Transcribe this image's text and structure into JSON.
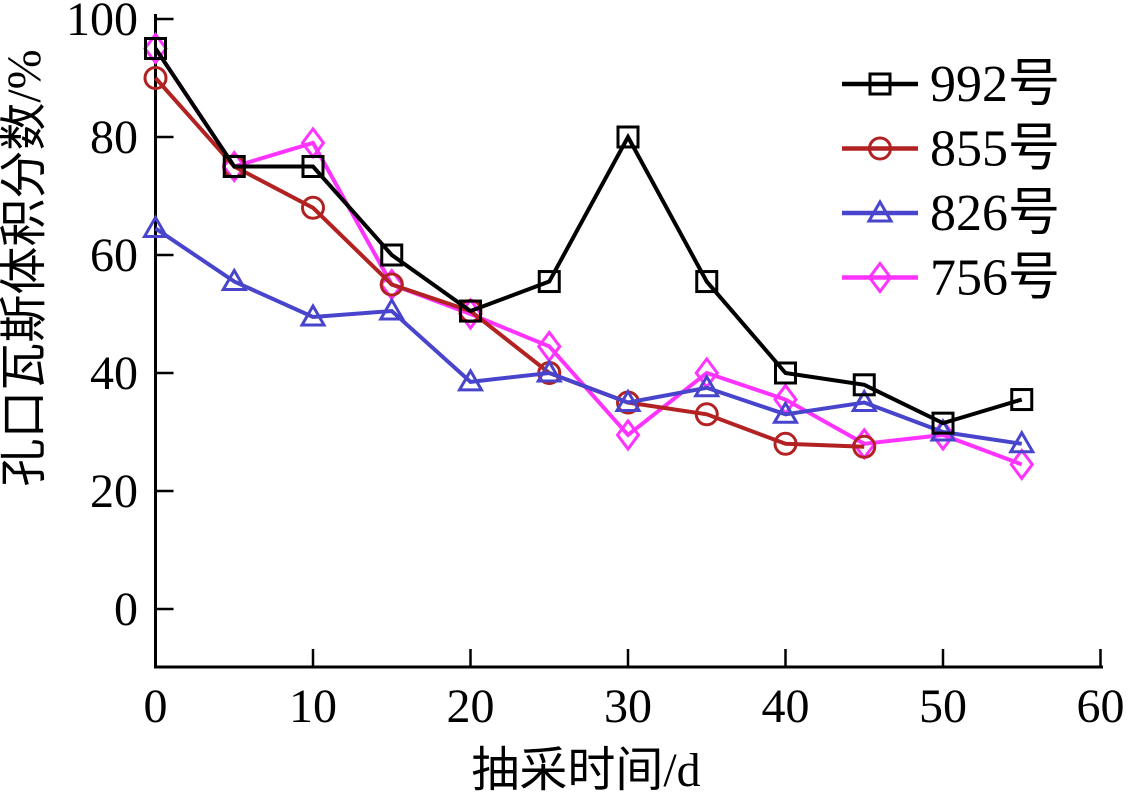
{
  "figure": {
    "background": "#ffffff"
  },
  "chart_data": {
    "type": "line",
    "title": "",
    "xlabel": "抽采时间/d",
    "ylabel": "孔口瓦斯体积分数/%",
    "xlim": [
      0,
      60
    ],
    "ylim": [
      0,
      100
    ],
    "xticks": [
      0,
      10,
      20,
      30,
      40,
      50,
      60
    ],
    "yticks": [
      0,
      20,
      40,
      60,
      80,
      100
    ],
    "grid": false,
    "legend_position": "upper-right",
    "x": [
      0,
      5,
      10,
      15,
      20,
      25,
      30,
      35,
      40,
      45,
      50,
      55
    ],
    "series": [
      {
        "name": "992号",
        "color": "#000000",
        "marker": "square",
        "values": [
          95,
          75,
          75,
          60,
          50.5,
          55.5,
          80,
          55.5,
          40,
          38,
          31.5,
          35.5
        ]
      },
      {
        "name": "855号",
        "color": "#b22222",
        "marker": "circle",
        "values": [
          90,
          75,
          68,
          55,
          50.5,
          40,
          35,
          33,
          28,
          27.5,
          null,
          null
        ]
      },
      {
        "name": "826号",
        "color": "#4845cc",
        "marker": "triangle",
        "values": [
          64.5,
          55.5,
          49.5,
          50.5,
          38.5,
          40,
          35,
          37.5,
          33,
          35,
          30,
          28
        ]
      },
      {
        "name": "756号",
        "color": "#ff33ff",
        "marker": "diamond",
        "values": [
          95,
          75,
          79,
          55,
          50,
          44.5,
          29.5,
          40,
          35.5,
          28,
          29.5,
          24.5
        ]
      }
    ]
  }
}
